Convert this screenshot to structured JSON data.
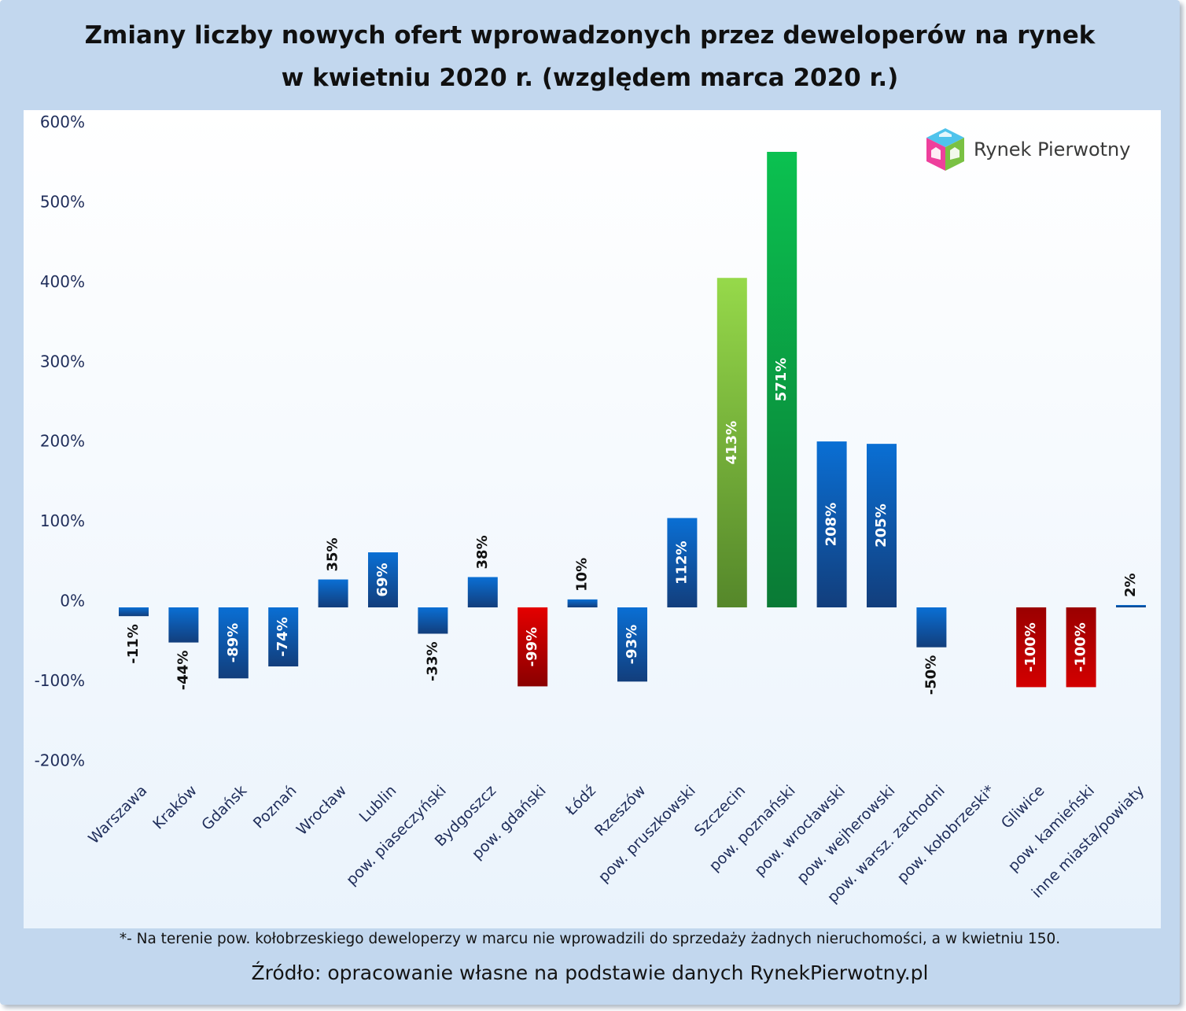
{
  "title_lines": [
    "Zmiany liczby nowych ofert wprowadzonych przez deweloperów na rynek",
    "w kwietniu 2020 r. (względem marca 2020 r.)"
  ],
  "footnote": "*- Na terenie pow. kołobrzeskiego deweloperzy w marcu nie wprowadzili do sprzedaży żadnych nieruchomości, a w kwietniu 150.",
  "source": "Źródło: opracowanie własne na podstawie danych RynekPierwotny.pl",
  "logo": {
    "text": "Rynek Pierwotny",
    "icon": "cube-house-icon"
  },
  "colors": {
    "frame": "#c2d7ee",
    "plot_top": "#ffffff",
    "plot_bottom": "#eaf3fc",
    "axis_text": "#1f2d5a",
    "blue": "#0b63bf",
    "red": "#cc0000",
    "green": "#12a84a",
    "light_green": "#88cc44"
  },
  "chart_data": {
    "type": "bar",
    "title": "Zmiany liczby nowych ofert wprowadzonych przez deweloperów na rynek w kwietniu 2020 r. (względem marca 2020 r.)",
    "xlabel": "",
    "ylabel": "",
    "ylim": [
      -200,
      600
    ],
    "yticks": [
      -200,
      -100,
      0,
      100,
      200,
      300,
      400,
      500,
      600
    ],
    "ytick_labels": [
      "-200%",
      "-100%",
      "0%",
      "100%",
      "200%",
      "300%",
      "400%",
      "500%",
      "600%"
    ],
    "grid": false,
    "legend": "none",
    "categories": [
      "Warszawa",
      "Kraków",
      "Gdańsk",
      "Poznań",
      "Wrocław",
      "Lublin",
      "pow. piaseczyński",
      "Bydgoszcz",
      "pow. gdański",
      "Łódź",
      "Rzeszów",
      "pow. pruszkowski",
      "Szczecin",
      "pow. poznański",
      "pow. wrocławski",
      "pow. wejherowski",
      "pow. warsz. zachodni",
      "pow. kołobrzeski*",
      "Gliwice",
      "pow. kamieński",
      "inne miasta/powiaty"
    ],
    "values": [
      -11,
      -44,
      -89,
      -74,
      35,
      69,
      -33,
      38,
      -99,
      10,
      -93,
      112,
      413,
      571,
      208,
      205,
      -50,
      null,
      -100,
      -100,
      2
    ],
    "value_labels": [
      "-11%",
      "-44%",
      "-89%",
      "-74%",
      "35%",
      "69%",
      "-33%",
      "38%",
      "-99%",
      "10%",
      "-93%",
      "112%",
      "413%",
      "571%",
      "208%",
      "205%",
      "-50%",
      "",
      "-100%",
      "-100%",
      "2%"
    ],
    "bar_colors": [
      "blue",
      "blue",
      "blue",
      "blue",
      "blue",
      "blue",
      "blue",
      "blue",
      "red",
      "blue",
      "blue",
      "blue",
      "light_green",
      "green",
      "blue",
      "blue",
      "blue",
      "blue",
      "red",
      "red",
      "blue"
    ]
  }
}
